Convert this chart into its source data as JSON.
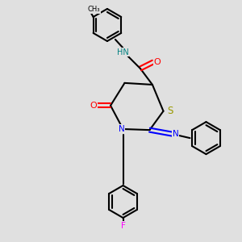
{
  "bg_color": "#e0e0e0",
  "bond_color": "#000000",
  "bond_lw": 1.5,
  "atom_colors": {
    "N": "#0000ff",
    "O": "#ff0000",
    "S": "#999900",
    "F": "#ff00ff",
    "NH": "#008080",
    "C": "#000000"
  },
  "font_size": 7.5,
  "font_size_small": 6.5
}
